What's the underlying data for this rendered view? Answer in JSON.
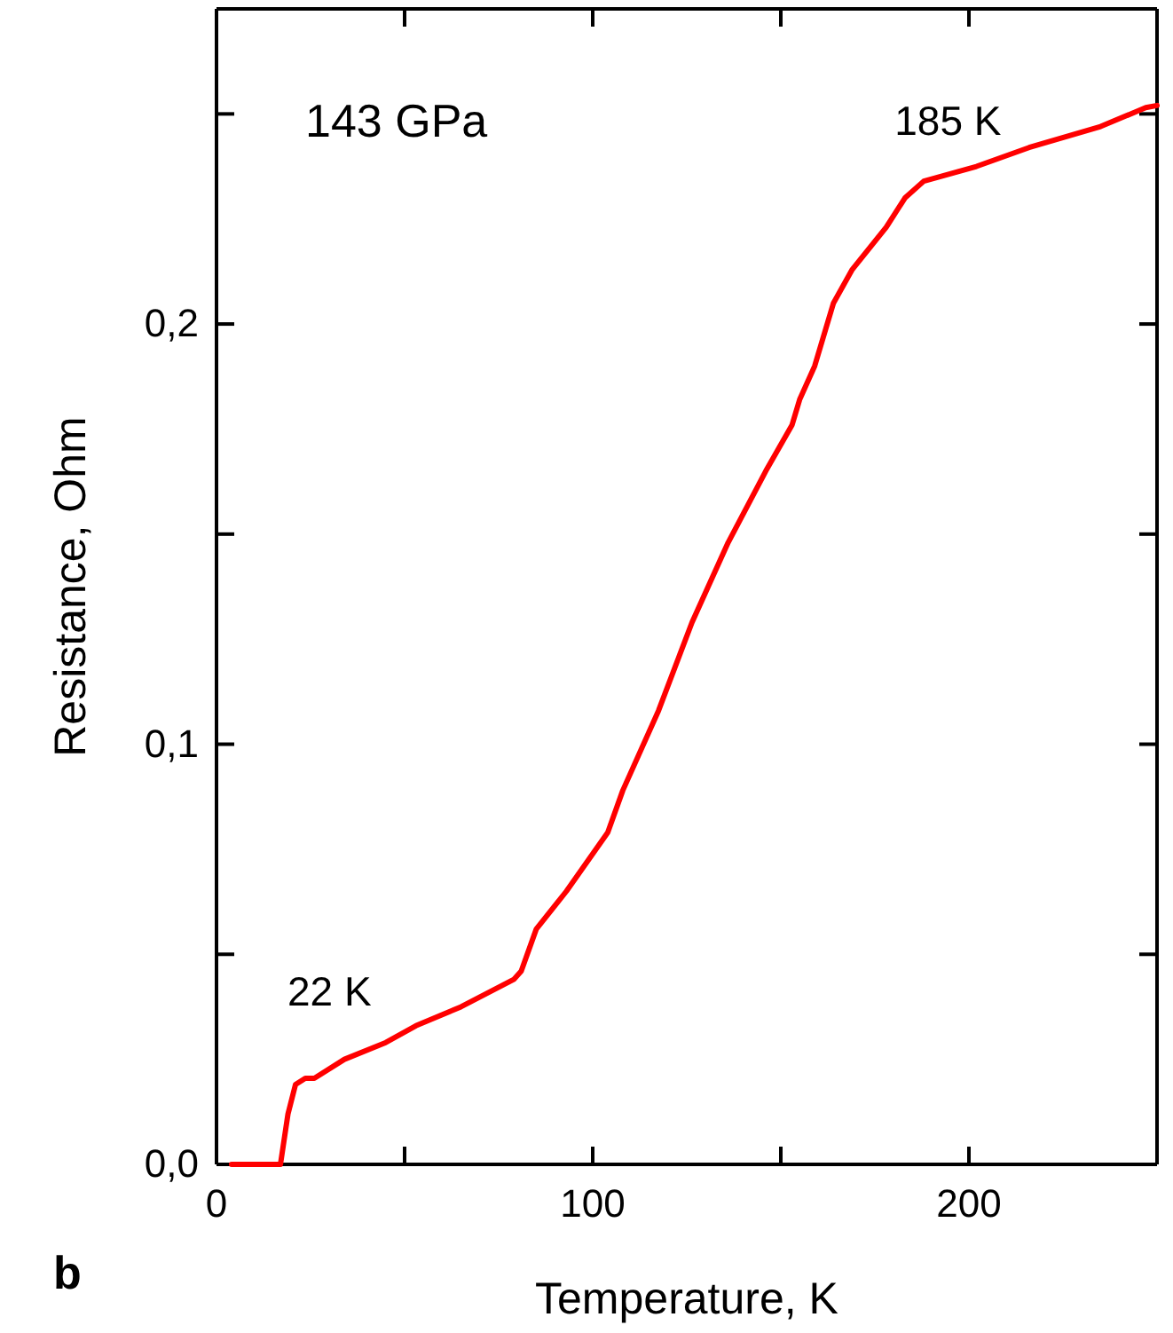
{
  "chart_data": {
    "type": "line",
    "xlabel": "Temperature, K",
    "ylabel": "Resistance, Ohm",
    "xlim": [
      0,
      250
    ],
    "ylim": [
      0,
      0.275
    ],
    "xticks": [
      0,
      {
        "value": 50,
        "label": null
      },
      100,
      {
        "value": 150,
        "label": null
      },
      200
    ],
    "yticks": [
      {
        "value": 0,
        "label": "0,0"
      },
      {
        "value": 0.05,
        "label": null
      },
      {
        "value": 0.1,
        "label": "0,1"
      },
      {
        "value": 0.15,
        "label": null
      },
      {
        "value": 0.2,
        "label": "0,2"
      },
      {
        "value": 0.25,
        "label": null
      }
    ],
    "grid": false,
    "marker": "none",
    "line_style": "solid",
    "series": [
      {
        "color": "#ff0000",
        "x": [
          4,
          17,
          19,
          21,
          23.6,
          26,
          34,
          45,
          53,
          65,
          79,
          81,
          85,
          93,
          104,
          108,
          117.5,
          126.4,
          136,
          146,
          153,
          155,
          159,
          164,
          169,
          178,
          183,
          188,
          202,
          216,
          235,
          247,
          250
        ],
        "values": [
          0,
          0,
          0.012,
          0.019,
          0.0205,
          0.0205,
          0.025,
          0.029,
          0.033,
          0.0375,
          0.044,
          0.046,
          0.056,
          0.065,
          0.079,
          0.089,
          0.108,
          0.129,
          0.148,
          0.165,
          0.176,
          0.182,
          0.19,
          0.205,
          0.213,
          0.223,
          0.23,
          0.234,
          0.2375,
          0.242,
          0.247,
          0.2515,
          0.252
        ]
      }
    ],
    "annotations": [
      "143 GPa",
      "b",
      {
        "text": "185 K",
        "x": 185,
        "y": 0.234
      },
      {
        "text": "22 K",
        "x": 22,
        "y": 0.02
      }
    ]
  }
}
